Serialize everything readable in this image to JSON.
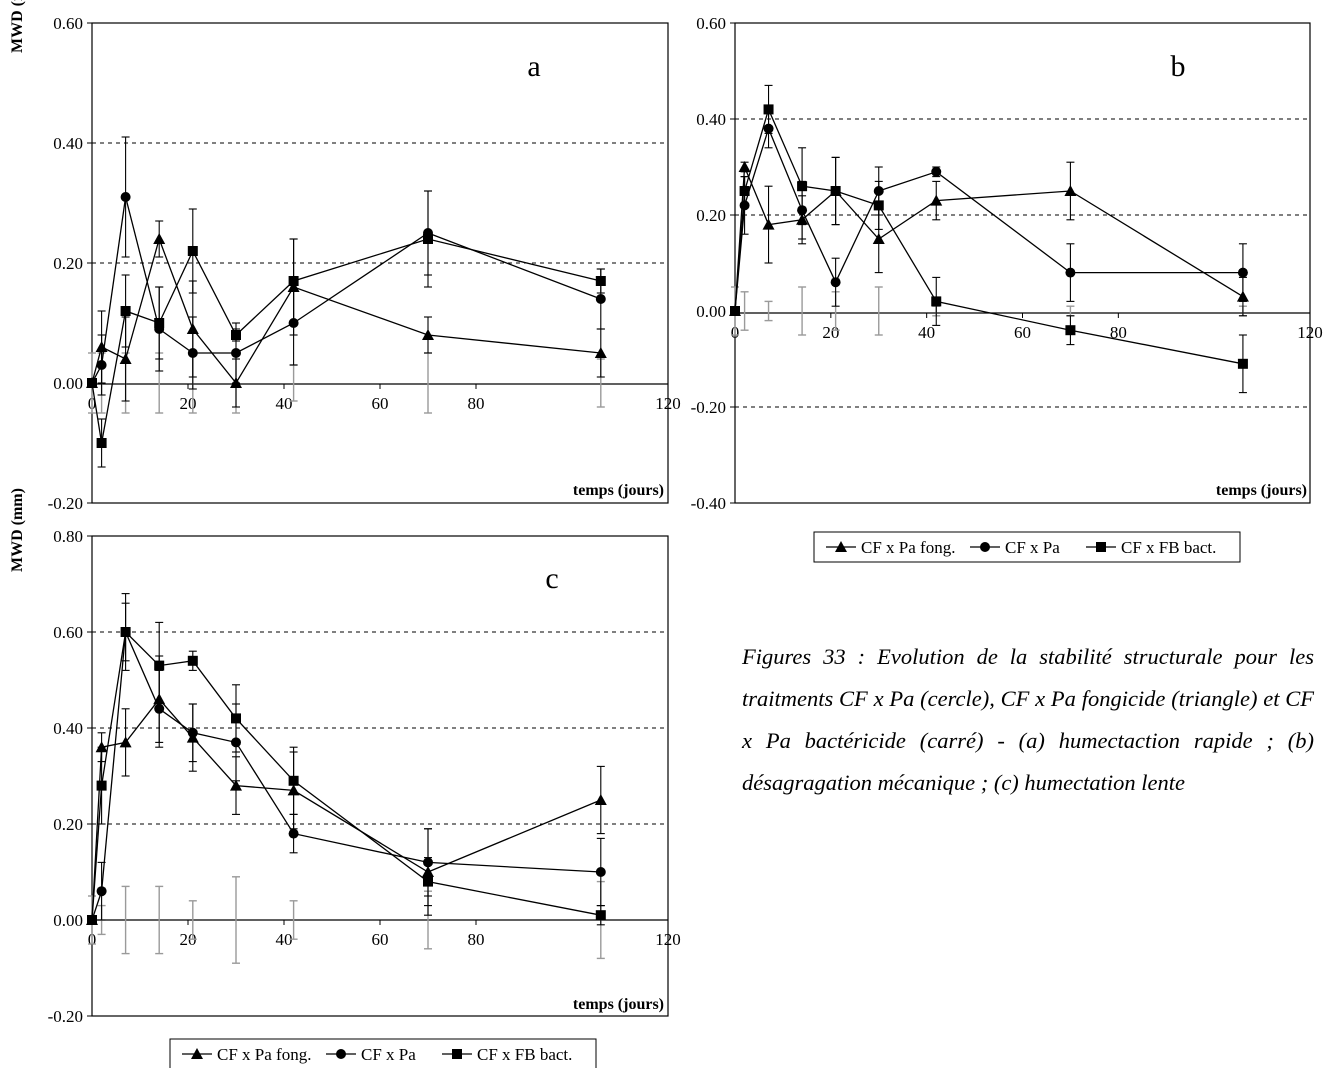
{
  "caption": "Figures 33 : Evolution de la stabilité structurale pour les traitments CF x Pa (cercle), CF x Pa fongicide (triangle) et CF x Pa bactéricide (carré) - (a) humectaction rapide ; (b) désagragation mécanique ; (c) humectation lente",
  "legend_entries": [
    "CF x Pa fong.",
    "CF x Pa",
    "CF x FB bact."
  ],
  "chart_data": [
    {
      "id": "a",
      "type": "line",
      "panel_label": "a",
      "ylabel": "MWD (mm)",
      "xlabel": "temps (jours)",
      "xlim": [
        0,
        120
      ],
      "ylim": [
        -0.2,
        0.6
      ],
      "x_ticks": [
        "0",
        "20",
        "40",
        "60",
        "80",
        "120"
      ],
      "x_tick_values": [
        0,
        20,
        40,
        60,
        80,
        120
      ],
      "y_ticks": [
        "0.60",
        "0.40",
        "0.20",
        "0.00",
        "-0.20"
      ],
      "y_tick_values": [
        0.6,
        0.4,
        0.2,
        0.0,
        -0.2
      ],
      "grid": [
        0.4,
        0.2
      ],
      "series": [
        {
          "marker": "triangle",
          "x": [
            0,
            2,
            7,
            14,
            21,
            30,
            42,
            70,
            106
          ],
          "y": [
            0.0,
            0.06,
            0.04,
            0.24,
            0.09,
            0.0,
            0.16,
            0.08,
            0.05
          ],
          "err": [
            0,
            0.06,
            0.07,
            0.03,
            0.08,
            0.04,
            0.08,
            0.03,
            0.04
          ]
        },
        {
          "marker": "circle",
          "x": [
            0,
            2,
            7,
            14,
            21,
            30,
            42,
            70,
            106
          ],
          "y": [
            0.0,
            0.03,
            0.31,
            0.09,
            0.05,
            0.05,
            0.1,
            0.25,
            0.14
          ],
          "err": [
            0,
            0.05,
            0.1,
            0.07,
            0.06,
            0.05,
            0.07,
            0.07,
            0.05
          ]
        },
        {
          "marker": "square",
          "x": [
            0,
            2,
            7,
            14,
            21,
            30,
            42,
            70,
            106
          ],
          "y": [
            0.0,
            -0.1,
            0.12,
            0.1,
            0.22,
            0.08,
            0.17,
            0.24,
            0.17
          ],
          "err": [
            0,
            0.04,
            0.06,
            0.06,
            0.07,
            0.01,
            0.07,
            0.08,
            0.02
          ]
        }
      ],
      "control_err": {
        "x": [
          0,
          2,
          7,
          14,
          21,
          30,
          42,
          70,
          106
        ],
        "err": [
          0.05,
          0.05,
          0.05,
          0.05,
          0.05,
          0.05,
          0.03,
          0.05,
          0.04
        ]
      }
    },
    {
      "id": "b",
      "type": "line",
      "panel_label": "b",
      "ylabel": "",
      "xlabel": "temps (jours)",
      "xlim": [
        0,
        120
      ],
      "ylim": [
        -0.4,
        0.6
      ],
      "x_ticks": [
        "0",
        "20",
        "40",
        "60",
        "80",
        "120"
      ],
      "x_tick_values": [
        0,
        20,
        40,
        60,
        80,
        120
      ],
      "y_ticks": [
        "0.60",
        "0.40",
        "0.20",
        "0.00",
        "-0.20",
        "-0.40"
      ],
      "y_tick_values": [
        0.6,
        0.4,
        0.2,
        0.0,
        -0.2,
        -0.4
      ],
      "grid": [
        0.4,
        0.2,
        -0.2
      ],
      "series": [
        {
          "marker": "triangle",
          "x": [
            0,
            2,
            7,
            14,
            21,
            30,
            42,
            70,
            106
          ],
          "y": [
            0.0,
            0.3,
            0.18,
            0.19,
            0.25,
            0.15,
            0.23,
            0.25,
            0.03
          ],
          "err": [
            0,
            0.01,
            0.08,
            0.05,
            0.07,
            0.07,
            0.04,
            0.06,
            0.04
          ]
        },
        {
          "marker": "circle",
          "x": [
            0,
            2,
            7,
            14,
            21,
            30,
            42,
            70,
            106
          ],
          "y": [
            0.0,
            0.22,
            0.38,
            0.21,
            0.06,
            0.25,
            0.29,
            0.08,
            0.08
          ],
          "err": [
            0,
            0.06,
            0.04,
            0.06,
            0.05,
            0.05,
            0.01,
            0.06,
            0.06
          ]
        },
        {
          "marker": "square",
          "x": [
            0,
            2,
            7,
            14,
            21,
            30,
            42,
            70,
            106
          ],
          "y": [
            0.0,
            0.25,
            0.42,
            0.26,
            0.25,
            0.22,
            0.02,
            -0.04,
            -0.11
          ],
          "err": [
            0,
            0.03,
            0.05,
            0.08,
            0.07,
            0.05,
            0.05,
            0.03,
            0.06
          ]
        }
      ],
      "control_err": {
        "x": [
          0,
          2,
          7,
          14,
          21,
          30,
          42,
          70,
          106
        ],
        "err": [
          0.05,
          0.04,
          0.02,
          0.05,
          0.04,
          0.05,
          0.01,
          0.01,
          0.01
        ]
      }
    },
    {
      "id": "c",
      "type": "line",
      "panel_label": "c",
      "ylabel": "MWD (mm)",
      "xlabel": "temps (jours)",
      "xlim": [
        0,
        120
      ],
      "ylim": [
        -0.2,
        0.8
      ],
      "x_ticks": [
        "0",
        "20",
        "40",
        "60",
        "80",
        "120"
      ],
      "x_tick_values": [
        0,
        20,
        40,
        60,
        80,
        120
      ],
      "y_ticks": [
        "0.80",
        "0.60",
        "0.40",
        "0.20",
        "0.00",
        "-0.20"
      ],
      "y_tick_values": [
        0.8,
        0.6,
        0.4,
        0.2,
        0.0,
        -0.2
      ],
      "grid": [
        0.6,
        0.4,
        0.2
      ],
      "series": [
        {
          "marker": "triangle",
          "x": [
            0,
            2,
            7,
            14,
            21,
            30,
            42,
            70,
            106
          ],
          "y": [
            0.0,
            0.36,
            0.37,
            0.46,
            0.38,
            0.28,
            0.27,
            0.1,
            0.25
          ],
          "err": [
            0,
            0.03,
            0.07,
            0.09,
            0.07,
            0.06,
            0.08,
            0.09,
            0.07
          ]
        },
        {
          "marker": "circle",
          "x": [
            0,
            2,
            7,
            14,
            21,
            30,
            42,
            70,
            106
          ],
          "y": [
            0.0,
            0.06,
            0.6,
            0.44,
            0.39,
            0.37,
            0.18,
            0.12,
            0.1
          ],
          "err": [
            0,
            0.06,
            0.08,
            0.08,
            0.06,
            0.08,
            0.04,
            0.07,
            0.07
          ]
        },
        {
          "marker": "square",
          "x": [
            0,
            2,
            7,
            14,
            21,
            30,
            42,
            70,
            106
          ],
          "y": [
            0.0,
            0.28,
            0.6,
            0.53,
            0.54,
            0.42,
            0.29,
            0.08,
            0.01
          ],
          "err": [
            0,
            0.08,
            0.06,
            0.09,
            0.02,
            0.07,
            0.07,
            0.05,
            0.02
          ]
        }
      ],
      "control_err": {
        "x": [
          0,
          2,
          7,
          14,
          21,
          30,
          42,
          70,
          106
        ],
        "err": [
          0.05,
          0.03,
          0.07,
          0.07,
          0.04,
          0.09,
          0.04,
          0.06,
          0.08
        ]
      }
    }
  ]
}
